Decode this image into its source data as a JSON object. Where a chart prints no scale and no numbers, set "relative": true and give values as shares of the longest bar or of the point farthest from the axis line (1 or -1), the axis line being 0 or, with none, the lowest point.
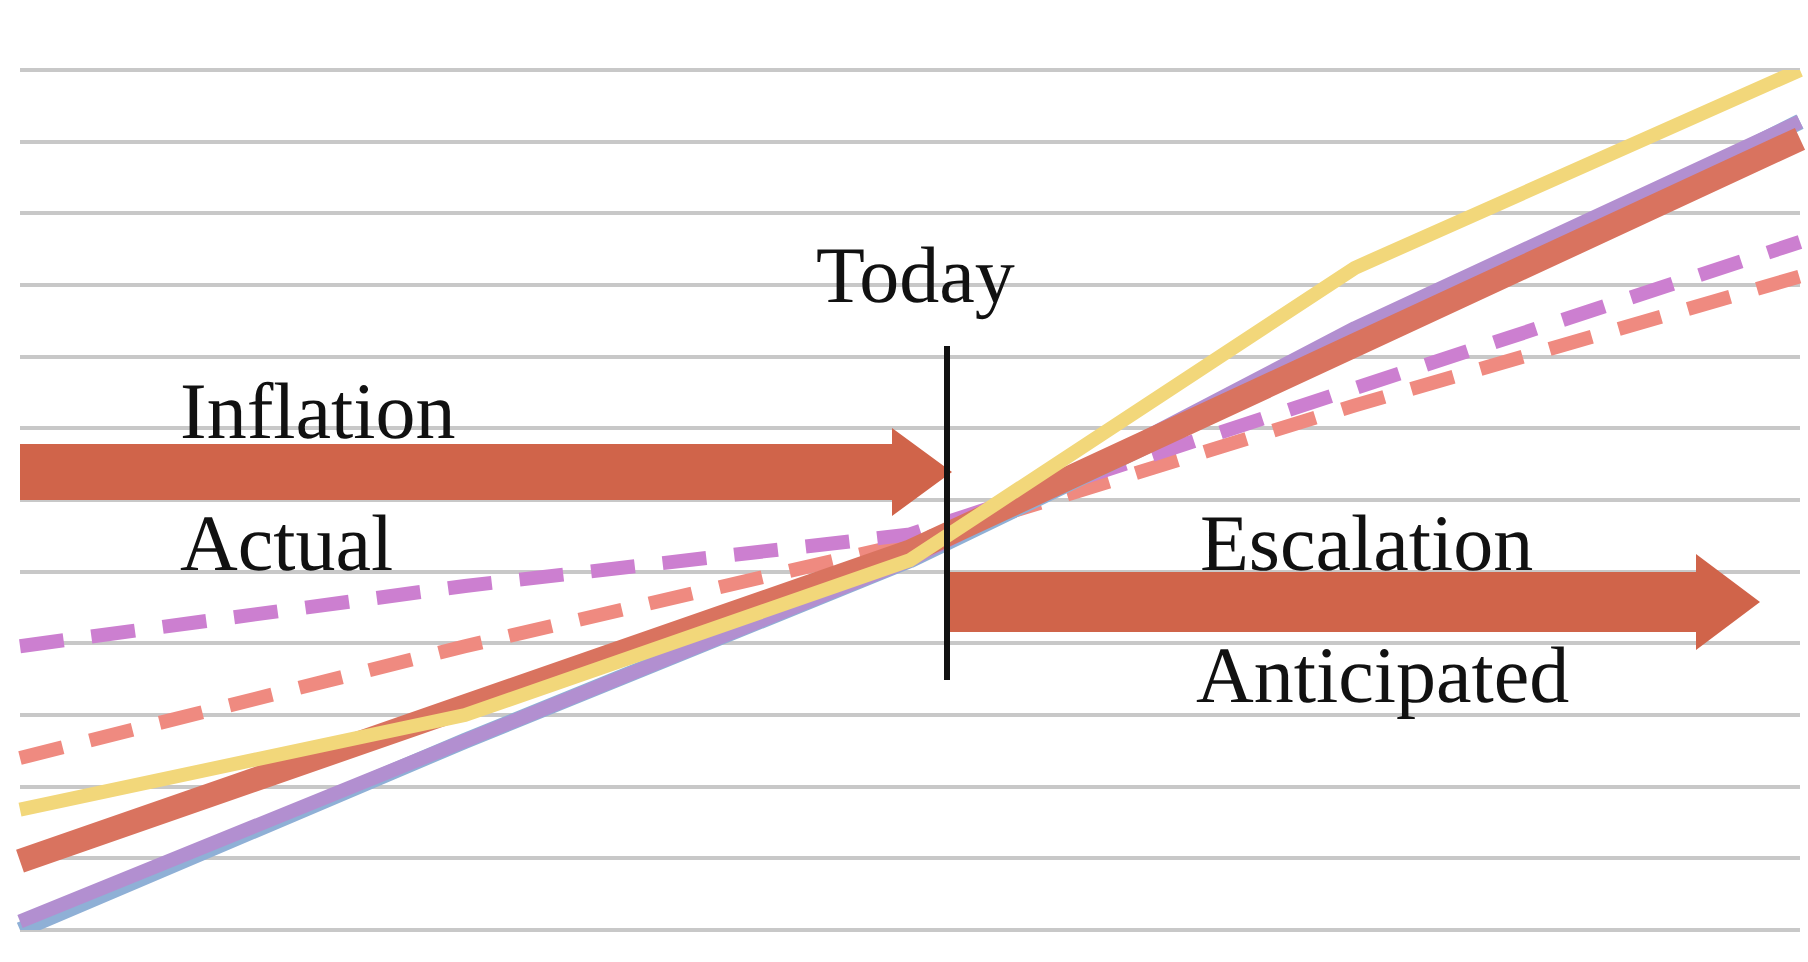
{
  "chart_data": {
    "type": "line",
    "relative": true,
    "grid": "y",
    "legend": false,
    "marker": "none",
    "categories": [
      null,
      null,
      null,
      null,
      null
    ],
    "series": [
      {
        "color": "#f2d77a",
        "line_style": "solid",
        "values": [
          0.14,
          0.25,
          0.43,
          0.77,
          1
        ]
      },
      {
        "color": "#d9735f",
        "line_style": "solid",
        "values": [
          0.08,
          0.26,
          0.44,
          0.68,
          0.92
        ]
      },
      {
        "color": "#b28fd0",
        "line_style": "solid",
        "values": [
          0.01,
          0.22,
          0.43,
          0.7,
          0.94
        ]
      },
      {
        "color": "#8fb0d6",
        "line_style": "solid",
        "values": [
          0,
          0.22,
          0.43,
          0.68,
          0.94
        ]
      },
      {
        "color": "#cc7fd0",
        "line_style": "dashed",
        "values": [
          0.33,
          0.4,
          0.46,
          0.63,
          0.8
        ]
      },
      {
        "color": "#ef8a80",
        "line_style": "dashed",
        "values": [
          0.2,
          0.33,
          0.45,
          0.61,
          0.76
        ]
      }
    ],
    "annotations": [
      "Today",
      "Inflation",
      "Actual",
      "Escalation",
      "Anticipated"
    ]
  }
}
